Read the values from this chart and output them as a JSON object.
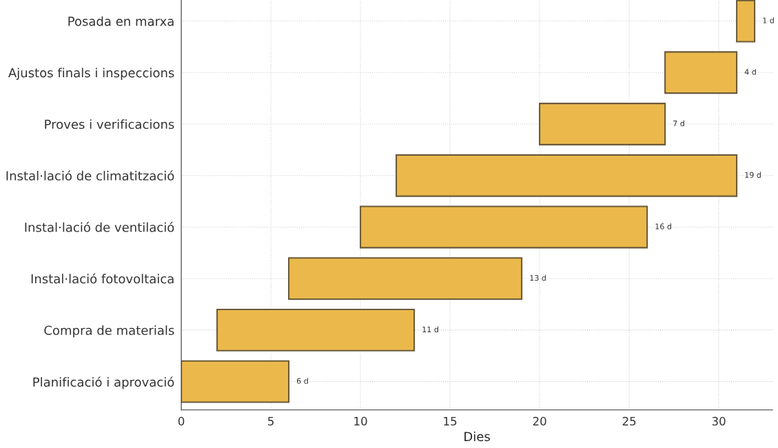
{
  "chart_data": {
    "type": "bar",
    "orientation": "horizontal",
    "xlabel": "Dies",
    "categories": [
      "Posada en marxa",
      "Ajustos finals i inspeccions",
      "Proves i verificacions",
      "Instal·lació de climatització",
      "Instal·lació de ventilació",
      "Instal·lació fotovoltaica",
      "Compra de materials",
      "Planificació i aprovació"
    ],
    "base": [
      31,
      27,
      20,
      12,
      10,
      6,
      2,
      0
    ],
    "values": [
      1,
      4,
      7,
      19,
      16,
      13,
      11,
      6
    ],
    "value_labels": [
      "1 d",
      "4 d",
      "7 d",
      "19 d",
      "16 d",
      "13 d",
      "11 d",
      "6 d"
    ],
    "color": "#ebb94b",
    "xlim": [
      0,
      33
    ],
    "xticks": [
      0,
      5,
      10,
      15,
      20,
      25,
      30
    ],
    "grid": true
  }
}
